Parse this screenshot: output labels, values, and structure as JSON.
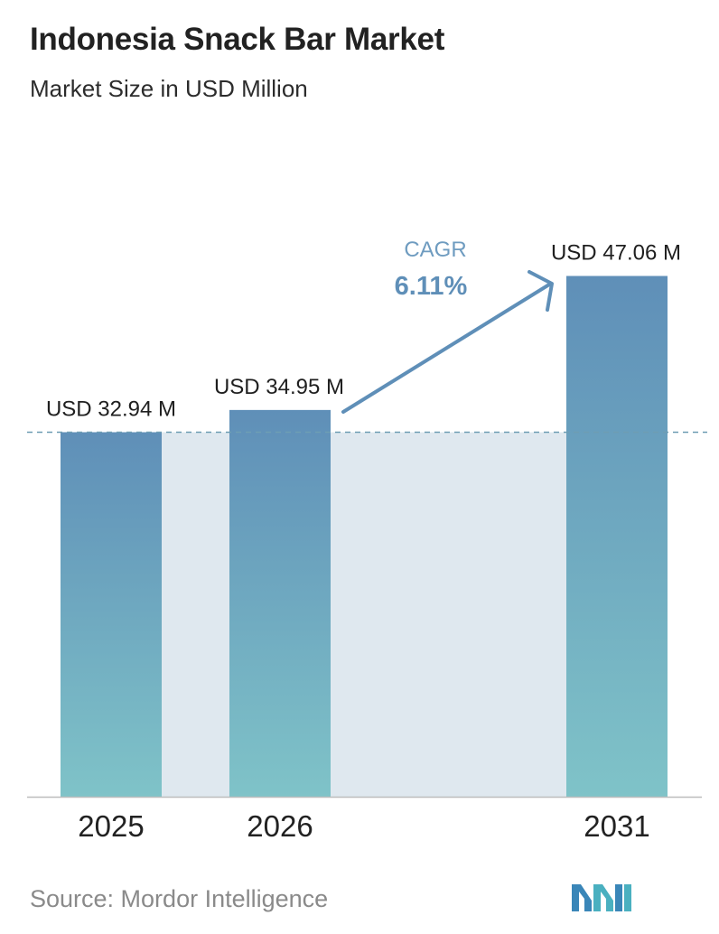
{
  "header": {
    "title": "Indonesia Snack Bar Market",
    "subtitle": "Market Size in USD Million"
  },
  "chart_data": {
    "type": "bar",
    "categories": [
      "2025",
      "2026",
      "2031"
    ],
    "values": [
      32.94,
      34.95,
      47.06
    ],
    "data_labels": [
      "USD 32.94 M",
      "USD 34.95 M",
      "USD 47.06 M"
    ],
    "unit": "USD Million",
    "annotation": {
      "label": "CAGR",
      "value": "6.11%"
    },
    "reference_line": 32.94,
    "colors": {
      "bar_top": "#5f8fb8",
      "bar_bottom": "#7fc3c8",
      "band": "#dfe8ef",
      "arrow": "#5f8fb8",
      "reference_line": "#6e9db3",
      "axis": "#bdbdbd"
    }
  },
  "footer": {
    "source": "Source:  Mordor Intelligence",
    "logo": "mordor-intelligence-logo"
  }
}
